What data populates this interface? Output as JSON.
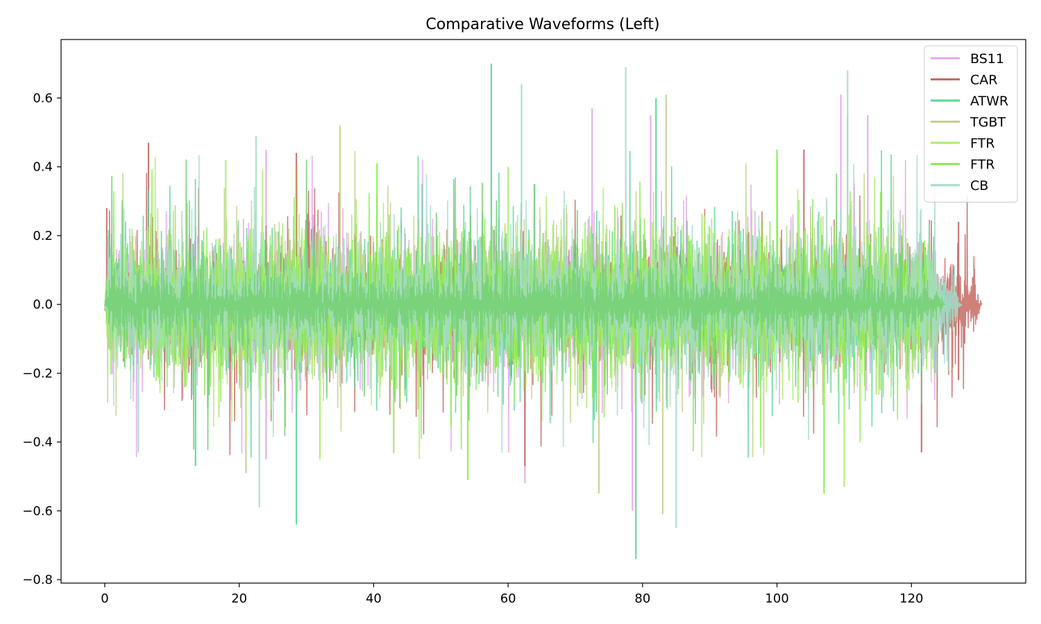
{
  "chart_data": {
    "type": "line",
    "title": "Comparative Waveforms (Left)",
    "xlabel": "",
    "ylabel": "",
    "xlim": [
      -6.5,
      137
    ],
    "ylim": [
      -0.81,
      0.77
    ],
    "x_ticks": [
      0,
      20,
      40,
      60,
      80,
      100,
      120
    ],
    "x_tick_labels": [
      "0",
      "20",
      "40",
      "60",
      "80",
      "100",
      "120"
    ],
    "y_ticks": [
      0.6,
      0.4,
      0.2,
      0.0,
      -0.2,
      -0.4,
      -0.6,
      -0.8
    ],
    "y_tick_labels": [
      "0.6",
      "0.4",
      "0.2",
      "0.0",
      "−0.2",
      "−0.4",
      "−0.6",
      "−0.8"
    ],
    "grid": false,
    "legend_position": "top-right",
    "series": [
      {
        "name": "BS11",
        "color": "#e2a6ec",
        "x_end": 126.5,
        "typical_amplitude": 0.2,
        "peaks": [
          {
            "x": 72.5,
            "y": 0.57
          },
          {
            "x": 81.2,
            "y": 0.55
          },
          {
            "x": 109.5,
            "y": 0.61
          },
          {
            "x": 113.5,
            "y": 0.55
          },
          {
            "x": 24,
            "y": 0.45
          },
          {
            "x": 62.5,
            "y": -0.52
          },
          {
            "x": 78.5,
            "y": -0.6
          },
          {
            "x": 24,
            "y": -0.45
          }
        ]
      },
      {
        "name": "CAR",
        "color": "#c66a62",
        "x_end": 130.5,
        "typical_amplitude": 0.18,
        "peaks": [
          {
            "x": 6.5,
            "y": 0.47
          },
          {
            "x": 0.3,
            "y": 0.28
          },
          {
            "x": 28.5,
            "y": 0.44
          },
          {
            "x": 104,
            "y": 0.45
          },
          {
            "x": 127,
            "y": 0.24
          },
          {
            "x": 62.5,
            "y": -0.47
          },
          {
            "x": 121.5,
            "y": -0.43
          },
          {
            "x": 127,
            "y": -0.22
          }
        ]
      },
      {
        "name": "ATWR",
        "color": "#56d696",
        "x_end": 126,
        "typical_amplitude": 0.2,
        "peaks": [
          {
            "x": 57.5,
            "y": 0.7
          },
          {
            "x": 82,
            "y": 0.6
          },
          {
            "x": 79,
            "y": -0.74
          },
          {
            "x": 28.5,
            "y": -0.64
          },
          {
            "x": 13.5,
            "y": -0.47
          },
          {
            "x": 100,
            "y": 0.42
          }
        ]
      },
      {
        "name": "TGBT",
        "color": "#c2d18a",
        "x_end": 125,
        "typical_amplitude": 0.2,
        "peaks": [
          {
            "x": 35,
            "y": 0.52
          },
          {
            "x": 83.5,
            "y": 0.61
          },
          {
            "x": 83,
            "y": -0.61
          },
          {
            "x": 21,
            "y": -0.49
          },
          {
            "x": 73.5,
            "y": -0.55
          },
          {
            "x": 110.5,
            "y": 0.55
          }
        ]
      },
      {
        "name": "FTR",
        "color": "#a8ef6c",
        "x_end": 125,
        "typical_amplitude": 0.2,
        "peaks": [
          {
            "x": 18,
            "y": 0.42
          },
          {
            "x": 110,
            "y": -0.53
          },
          {
            "x": 32,
            "y": -0.45
          },
          {
            "x": 60,
            "y": 0.4
          }
        ]
      },
      {
        "name": "FTR",
        "color": "#8aec4a",
        "x_end": 125,
        "typical_amplitude": 0.2,
        "peaks": [
          {
            "x": 40.5,
            "y": 0.41
          },
          {
            "x": 54,
            "y": -0.51
          },
          {
            "x": 100,
            "y": 0.45
          },
          {
            "x": 107,
            "y": -0.55
          }
        ]
      },
      {
        "name": "CB",
        "color": "#a6dbc8",
        "x_end": 127.5,
        "typical_amplitude": 0.2,
        "peaks": [
          {
            "x": 77.5,
            "y": 0.69
          },
          {
            "x": 110.5,
            "y": 0.68
          },
          {
            "x": 62,
            "y": 0.64
          },
          {
            "x": 23,
            "y": -0.59
          },
          {
            "x": 85,
            "y": -0.65
          },
          {
            "x": 5,
            "y": -0.43
          },
          {
            "x": 22.5,
            "y": 0.49
          }
        ]
      },
      {
        "name": "",
        "color": "#78d178",
        "x_end": 125,
        "typical_amplitude": 0.11,
        "peaks": []
      }
    ]
  }
}
